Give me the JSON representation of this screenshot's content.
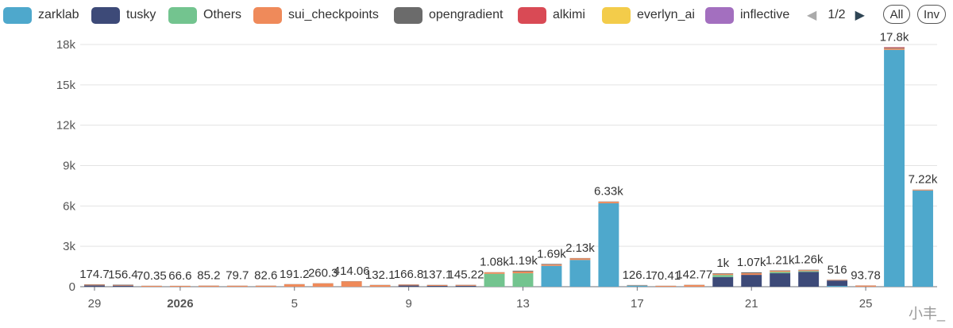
{
  "legend": {
    "items": [
      {
        "label": "zarklab",
        "color": "#4ea8cc"
      },
      {
        "label": "tusky",
        "color": "#3d4a78"
      },
      {
        "label": "Others",
        "color": "#73c48f"
      },
      {
        "label": "sui_checkpoints",
        "color": "#ef8a5a"
      },
      {
        "label": "opengradient",
        "color": "#6b6b6b"
      },
      {
        "label": "alkimi",
        "color": "#d94a55"
      },
      {
        "label": "everlyn_ai",
        "color": "#f3cc4a"
      },
      {
        "label": "inflective",
        "color": "#a36fbf"
      }
    ],
    "page_indicator": "1/2",
    "prev_icon": "◀",
    "next_icon": "▶",
    "all_label": "All",
    "inverse_label": "Inv"
  },
  "watermark": "小丰_",
  "chart_data": {
    "type": "bar",
    "stacked": true,
    "title": "",
    "xlabel": "",
    "ylabel": "",
    "ylim": [
      0,
      18000
    ],
    "yticks": [
      0,
      3000,
      6000,
      9000,
      12000,
      15000,
      18000
    ],
    "ytick_labels": [
      "0",
      "3k",
      "6k",
      "9k",
      "12k",
      "15k",
      "18k"
    ],
    "grid": true,
    "xtick_labels": [
      {
        "index": 0,
        "label": "29",
        "bold": false
      },
      {
        "index": 3,
        "label": "2026",
        "bold": true
      },
      {
        "index": 7,
        "label": "5",
        "bold": false
      },
      {
        "index": 11,
        "label": "9",
        "bold": false
      },
      {
        "index": 15,
        "label": "13",
        "bold": false
      },
      {
        "index": 19,
        "label": "17",
        "bold": false
      },
      {
        "index": 23,
        "label": "21",
        "bold": false
      },
      {
        "index": 27,
        "label": "25",
        "bold": false
      }
    ],
    "totals": [
      174.7,
      156.4,
      70.35,
      66.6,
      85.2,
      79.7,
      82.6,
      191.2,
      260.3,
      414.06,
      132.1,
      166.8,
      137.1,
      145.22,
      1080,
      1190,
      1690,
      2130,
      6330,
      126.1,
      70.41,
      142.77,
      1000,
      1070,
      1210,
      1260,
      516,
      93.78,
      17800,
      7220
    ],
    "total_labels": [
      "174.7",
      "156.4",
      "70.35",
      "66.6",
      "85.2",
      "79.7",
      "82.6",
      "191.2",
      "260.3",
      "414.06",
      "132.1",
      "166.8",
      "137.1",
      "145.22",
      "1.08k",
      "1.19k",
      "1.69k",
      "2.13k",
      "6.33k",
      "126.1",
      "70.41",
      "142.77",
      "1k",
      "1.07k",
      "1.21k",
      "1.26k",
      "516",
      "93.78",
      "17.8k",
      "7.22k"
    ],
    "series": [
      {
        "name": "zarklab",
        "values": [
          0,
          0,
          0,
          0,
          0,
          0,
          0,
          0,
          0,
          0,
          0,
          0,
          0,
          0,
          0,
          0,
          1550,
          1990,
          6200,
          90,
          0,
          0,
          0,
          0,
          0,
          0,
          60,
          0,
          17600,
          7150
        ]
      },
      {
        "name": "tusky",
        "values": [
          100,
          80,
          0,
          0,
          0,
          0,
          0,
          0,
          0,
          0,
          0,
          90,
          60,
          70,
          0,
          0,
          0,
          0,
          0,
          0,
          0,
          0,
          720,
          880,
          1000,
          1100,
          400,
          0,
          0,
          0
        ]
      },
      {
        "name": "Others",
        "values": [
          0,
          0,
          0,
          0,
          0,
          0,
          0,
          0,
          0,
          0,
          0,
          0,
          0,
          0,
          960,
          1000,
          0,
          0,
          0,
          0,
          0,
          0,
          150,
          0,
          100,
          60,
          0,
          0,
          0,
          0
        ]
      },
      {
        "name": "sui_checkpoints",
        "values": [
          50,
          50,
          60,
          60,
          75,
          70,
          72,
          180,
          250,
          400,
          120,
          60,
          65,
          65,
          110,
          130,
          100,
          120,
          110,
          30,
          60,
          130,
          90,
          120,
          80,
          70,
          40,
          85,
          100,
          60
        ]
      },
      {
        "name": "opengradient",
        "values": [
          24.7,
          26.4,
          10.35,
          6.6,
          10.2,
          9.7,
          10.6,
          11.2,
          10.3,
          14.06,
          12.1,
          16.8,
          12.1,
          10.22,
          10,
          60,
          40,
          20,
          20,
          6.1,
          10.41,
          12.77,
          40,
          70,
          30,
          30,
          16,
          8.78,
          50,
          10
        ]
      },
      {
        "name": "alkimi",
        "values": [
          0,
          0,
          0,
          0,
          0,
          0,
          0,
          0,
          0,
          0,
          0,
          0,
          0,
          0,
          0,
          0,
          0,
          0,
          0,
          0,
          0,
          0,
          0,
          0,
          0,
          0,
          0,
          0,
          50,
          0
        ]
      },
      {
        "name": "everlyn_ai",
        "values": [
          0,
          0,
          0,
          0,
          0,
          0,
          0,
          0,
          0,
          0,
          0,
          0,
          0,
          0,
          0,
          0,
          0,
          0,
          0,
          0,
          0,
          0,
          0,
          0,
          0,
          0,
          0,
          0,
          0,
          0
        ]
      },
      {
        "name": "inflective",
        "values": [
          0,
          0,
          0,
          0,
          0,
          0,
          0,
          0,
          0,
          0,
          0,
          0,
          0,
          0,
          0,
          0,
          0,
          0,
          0,
          0,
          0,
          0,
          0,
          0,
          0,
          0,
          0,
          0,
          0,
          0
        ]
      }
    ]
  }
}
